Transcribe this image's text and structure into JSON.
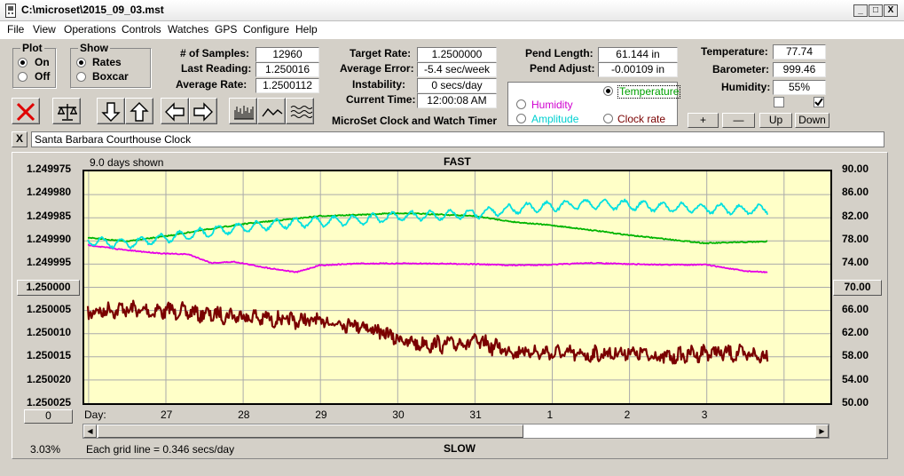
{
  "window": {
    "title": "C:\\microset\\2015_09_03.mst",
    "minimize": "_",
    "maximize": "□",
    "close": "X"
  },
  "menu": [
    "File",
    "View",
    "Operations",
    "Controls",
    "Watches",
    "GPS",
    "Configure",
    "Help"
  ],
  "plot_group": {
    "title": "Plot",
    "on": "On",
    "off": "Off",
    "selected": "On"
  },
  "show_group": {
    "title": "Show",
    "rates": "Rates",
    "boxcar": "Boxcar",
    "selected": "Rates"
  },
  "stats": {
    "samples_label": "# of Samples:",
    "samples": "12960",
    "last_label": "Last Reading:",
    "last": "1.250016",
    "avg_rate_label": "Average Rate:",
    "avg_rate": "1.2500112",
    "target_label": "Target Rate:",
    "target": "1.2500000",
    "avg_error_label": "Average Error:",
    "avg_error": "-5.4 sec/week",
    "instability_label": "Instability:",
    "instability": "0 secs/day",
    "time_label": "Current Time:",
    "time": "12:00:08 AM",
    "pend_len_label": "Pend Length:",
    "pend_len": "61.144 in",
    "pend_adj_label": "Pend Adjust:",
    "pend_adj": "-0.00109 in",
    "temp_label": "Temperature:",
    "temp": "77.74",
    "baro_label": "Barometer:",
    "baro": "999.46",
    "humid_label": "Humidity:",
    "humid": "55%"
  },
  "timer_title": "MicroSet Clock and Watch Timer",
  "sensor_select": {
    "temperature": "Temperature",
    "humidity": "Humidity",
    "amplitude": "Amplitude",
    "clock_rate": "Clock rate",
    "selected": "Temperature"
  },
  "adjust_buttons": {
    "plus": "+",
    "minus": "—",
    "up": "Up",
    "down": "Down"
  },
  "checkboxes": [
    {
      "checked": false
    },
    {
      "checked": true
    }
  ],
  "clock_name": {
    "close": "X",
    "value": "Santa Barbara Courthouse Clock"
  },
  "chart": {
    "days_shown": "9.0 days shown",
    "fast": "FAST",
    "slow": "SLOW",
    "day_label": "Day:",
    "grid_note": "Each grid line = 0.346 secs/day",
    "percent": "3.03%",
    "left_button": "1.250000",
    "right_button": "70.00",
    "bottom_button": "0"
  },
  "chart_data": {
    "type": "line",
    "y_left_ticks": [
      "1.249975",
      "1.249980",
      "1.249985",
      "1.249990",
      "1.249995",
      "1.250000",
      "1.250005",
      "1.250010",
      "1.250015",
      "1.250020",
      "1.250025"
    ],
    "y_right_ticks": [
      "90.00",
      "86.00",
      "82.00",
      "78.00",
      "74.00",
      "70.00",
      "66.00",
      "62.00",
      "58.00",
      "54.00",
      "50.00"
    ],
    "x_ticks": [
      "27",
      "28",
      "29",
      "30",
      "31",
      "1",
      "2",
      "3"
    ],
    "colors": {
      "rate": "#7a0000",
      "temperature": "#00b400",
      "humidity": "#e600e6",
      "amplitude": "#00e0e0"
    },
    "series": [
      {
        "key": "rate",
        "axis": "left",
        "noise": 0.9,
        "x": [
          0,
          0.3,
          0.5,
          0.8,
          1.1,
          1.5,
          2.0,
          2.5,
          3.0,
          3.5,
          3.8,
          4.2,
          4.6,
          5.0,
          5.5,
          6.0,
          6.5,
          7.0,
          7.5,
          8.0,
          8.8
        ],
        "y": [
          1.2500054,
          1.2500049,
          1.2500047,
          1.2500052,
          1.250005,
          1.2500058,
          1.2500062,
          1.2500071,
          1.2500073,
          1.250008,
          1.2500098,
          1.2500121,
          1.2500124,
          1.2500117,
          1.2500138,
          1.2500142,
          1.2500146,
          1.250014,
          1.2500152,
          1.250014,
          1.2500148
        ]
      },
      {
        "key": "temperature",
        "axis": "right",
        "noise": 0.1,
        "x": [
          0,
          0.5,
          1.0,
          1.5,
          2.0,
          2.5,
          3.0,
          3.5,
          4.0,
          4.5,
          5.0,
          5.5,
          6.0,
          6.5,
          7.0,
          7.5,
          8.0,
          8.8
        ],
        "y": [
          78.6,
          77.9,
          78.8,
          79.9,
          80.9,
          81.6,
          82.3,
          82.5,
          82.8,
          82.6,
          82.3,
          81.3,
          80.7,
          79.9,
          79.0,
          78.3,
          77.6,
          77.9
        ]
      },
      {
        "key": "humidity",
        "axis": "right",
        "noise": 0.1,
        "x": [
          0,
          0.5,
          1.0,
          1.3,
          1.6,
          1.9,
          2.3,
          2.7,
          3.0,
          3.5,
          4.0,
          4.5,
          5.0,
          5.5,
          6.0,
          6.5,
          7.0,
          7.5,
          8.0,
          8.5,
          8.8
        ],
        "y": [
          77.3,
          76.4,
          75.8,
          75.7,
          74.2,
          74.4,
          73.4,
          72.6,
          73.8,
          74.1,
          74.1,
          74.1,
          74.0,
          73.8,
          73.9,
          74.2,
          74.0,
          73.9,
          73.9,
          72.8,
          72.6
        ]
      },
      {
        "key": "amplitude",
        "axis": "right",
        "noise": 1.8,
        "x": [
          0,
          0.5,
          1.0,
          1.5,
          2.0,
          2.5,
          3.0,
          3.5,
          4.0,
          4.5,
          5.0,
          5.5,
          6.0,
          6.5,
          7.0,
          7.5,
          8.0,
          8.5,
          8.8
        ],
        "y": [
          78.0,
          77.5,
          78.5,
          79.5,
          80.3,
          81.0,
          81.3,
          81.6,
          82.2,
          82.4,
          82.7,
          83.5,
          84.0,
          84.4,
          84.2,
          83.8,
          83.6,
          83.4,
          83.4
        ]
      }
    ]
  }
}
